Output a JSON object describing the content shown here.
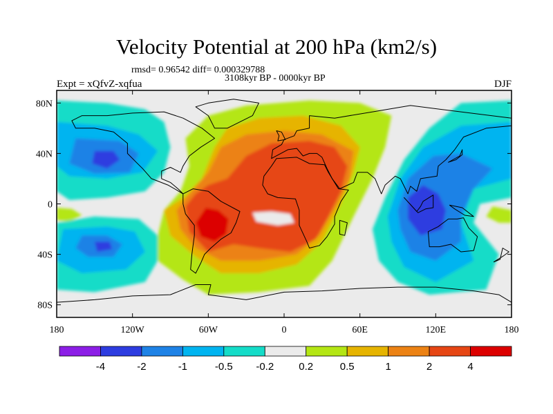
{
  "title": "Velocity Potential at 200 hPa (km2/s)",
  "stats_text": "rmsd= 0.96542 diff= 0.000329788",
  "period_text": "3108kyr BP - 0000kyr BP",
  "experiment_text": "Expt = xQfvZ-xqfua",
  "season_text": "DJF",
  "chart_data": {
    "type": "filled-contour-map",
    "variable": "Velocity potential difference at 200 hPa",
    "units": "km2/s",
    "xlim": [
      -180,
      180
    ],
    "ylim": [
      -90,
      90
    ],
    "x_ticks": [
      {
        "value": -180,
        "label": "180"
      },
      {
        "value": -120,
        "label": "120W"
      },
      {
        "value": -60,
        "label": "60W"
      },
      {
        "value": 0,
        "label": "0"
      },
      {
        "value": 60,
        "label": "60E"
      },
      {
        "value": 120,
        "label": "120E"
      },
      {
        "value": 180,
        "label": "180"
      }
    ],
    "y_ticks": [
      {
        "value": 80,
        "label": "80N"
      },
      {
        "value": 40,
        "label": "40N"
      },
      {
        "value": 0,
        "label": "0"
      },
      {
        "value": -40,
        "label": "40S"
      },
      {
        "value": -80,
        "label": "80S"
      }
    ],
    "contour_levels": [
      -4,
      -2,
      -1,
      -0.5,
      -0.2,
      0.2,
      0.5,
      1,
      2,
      4
    ],
    "colorbar_labels": [
      "-4",
      "-2",
      "-1",
      "-0.5",
      "-0.2",
      "0.2",
      "0.5",
      "1",
      "2",
      "4"
    ],
    "colorbar_colors": [
      "#8c1ee6",
      "#2d3ce0",
      "#1e82e6",
      "#00b4f0",
      "#14dcc8",
      "#ebebeb",
      "#b4e614",
      "#e6b400",
      "#ec8214",
      "#e64614",
      "#dc0000"
    ],
    "features": [
      {
        "label": "Africa / Atlantic broad positive anomaly",
        "lon": 10,
        "lat": 20,
        "level": 2
      },
      {
        "label": "South America positive maximum",
        "lon": -55,
        "lat": -15,
        "level": 4
      },
      {
        "label": "Maritime Continent negative minimum",
        "lon": 110,
        "lat": -5,
        "level": -2
      },
      {
        "label": "North Pacific negative anomaly",
        "lon": -145,
        "lat": 35,
        "level": -2
      },
      {
        "label": "South Pacific negative anomaly",
        "lon": -145,
        "lat": -30,
        "level": -1
      }
    ]
  }
}
